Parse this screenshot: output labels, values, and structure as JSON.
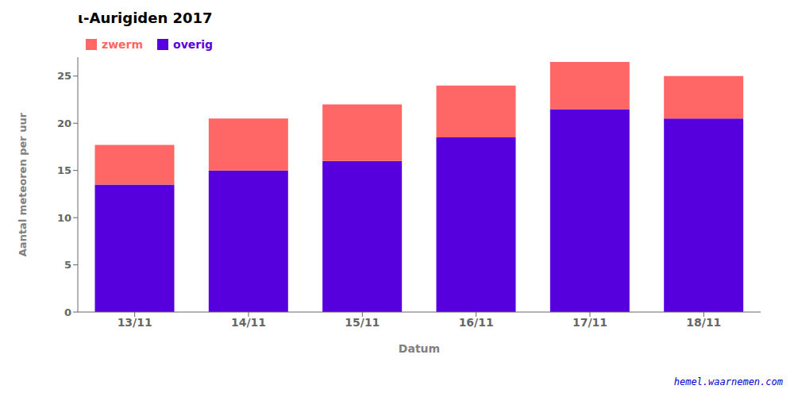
{
  "chart_data": {
    "type": "bar",
    "stacked": true,
    "title": "ι-Aurigiden 2017",
    "xlabel": "Datum",
    "ylabel": "Aantal meteoren per uur",
    "categories": [
      "13/11",
      "14/11",
      "15/11",
      "16/11",
      "17/11",
      "18/11"
    ],
    "series": [
      {
        "name": "overig",
        "color": "#5500DD",
        "values": [
          13.5,
          15.0,
          16.0,
          18.5,
          21.5,
          20.5
        ]
      },
      {
        "name": "zwerm",
        "color": "#FF6666",
        "values": [
          4.2,
          5.5,
          6.0,
          5.5,
          5.0,
          4.5
        ]
      }
    ],
    "ylim": [
      0,
      27
    ],
    "yticks": [
      0,
      5,
      10,
      15,
      20,
      25
    ],
    "legend": "upper left",
    "grid": false,
    "annotations": [
      {
        "text": "hemel.waarnemen.com",
        "color": "#0000CC"
      }
    ]
  }
}
